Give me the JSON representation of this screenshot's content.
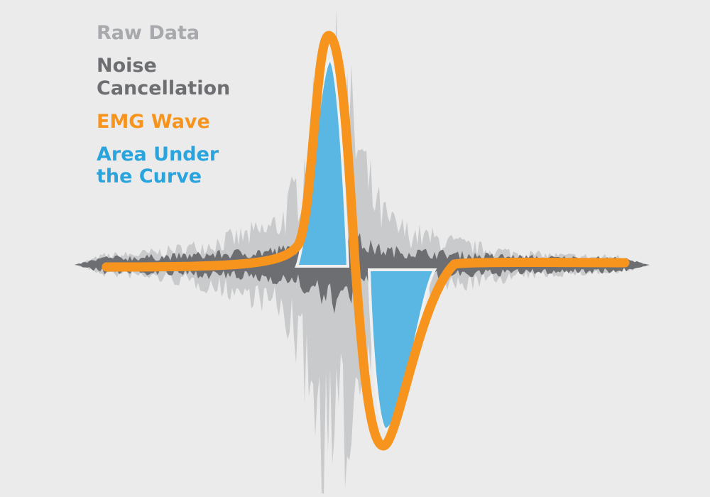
{
  "labels": {
    "raw_data": "Raw Data",
    "noise_cancellation": [
      "Noise",
      "Cancellation"
    ],
    "emg_wave": "EMG Wave",
    "area_under_the_curve": [
      "Area Under",
      "the Curve"
    ]
  }
}
